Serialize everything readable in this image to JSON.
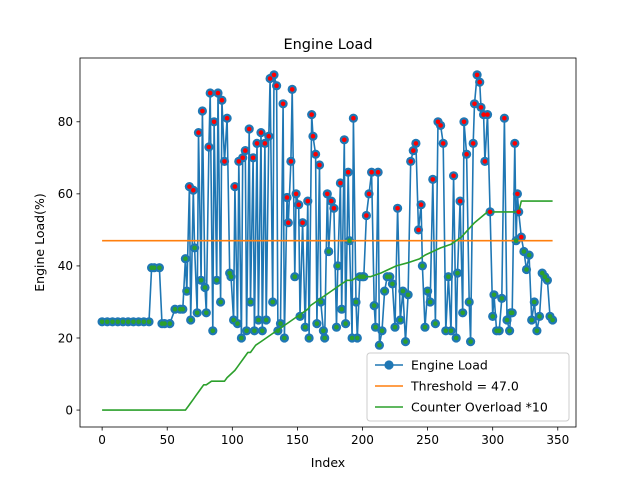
{
  "chart_data": {
    "type": "line",
    "title": "Engine Load",
    "xlabel": "Index",
    "ylabel": "Engine Load(%)",
    "xlim": [
      -17,
      364
    ],
    "ylim": [
      -4.7,
      97.7
    ],
    "xticks": [
      0,
      50,
      100,
      150,
      200,
      250,
      300,
      350
    ],
    "yticks": [
      0,
      20,
      40,
      60,
      80
    ],
    "grid": false,
    "legend_position": "lower right",
    "threshold": 47.0,
    "series": [
      {
        "name": "Engine Load",
        "color": "#1f77b4",
        "marker": "circle",
        "x": [
          0,
          4,
          8,
          12,
          16,
          20,
          24,
          28,
          32,
          36,
          38,
          40,
          44,
          46,
          48,
          52,
          56,
          60,
          62,
          64,
          65,
          67,
          68,
          70,
          71,
          73,
          74,
          76,
          77,
          79,
          80,
          82,
          83,
          85,
          86,
          88,
          89,
          91,
          92,
          94,
          96,
          98,
          99,
          101,
          102,
          104,
          105,
          107,
          108,
          110,
          111,
          113,
          114,
          116,
          117,
          119,
          120,
          122,
          123,
          125,
          126,
          128,
          129,
          131,
          132,
          134,
          135,
          137,
          139,
          140,
          142,
          143,
          145,
          146,
          148,
          149,
          151,
          152,
          154,
          156,
          158,
          159,
          161,
          162,
          164,
          165,
          167,
          168,
          170,
          171,
          173,
          174,
          176,
          178,
          180,
          181,
          183,
          184,
          186,
          187,
          189,
          190,
          192,
          193,
          195,
          196,
          198,
          200,
          201,
          203,
          205,
          207,
          209,
          210,
          212,
          213,
          215,
          217,
          219,
          221,
          223,
          225,
          227,
          229,
          231,
          233,
          235,
          237,
          239,
          241,
          243,
          245,
          246,
          248,
          250,
          252,
          254,
          256,
          258,
          260,
          262,
          264,
          266,
          268,
          270,
          272,
          273,
          275,
          277,
          278,
          280,
          282,
          283,
          285,
          286,
          288,
          290,
          291,
          293,
          294,
          296,
          298,
          300,
          301,
          303,
          305,
          307,
          309,
          311,
          313,
          314,
          315,
          317,
          318,
          319,
          320,
          322,
          324,
          326,
          328,
          330,
          332,
          334,
          336,
          338,
          340,
          342,
          344,
          346
        ],
        "y": [
          24.5,
          24.5,
          24.5,
          24.5,
          24.5,
          24.5,
          24.5,
          24.5,
          24.5,
          24.5,
          39.5,
          39.5,
          39.5,
          24,
          24,
          24,
          28,
          28,
          28,
          42,
          33,
          62,
          25,
          61,
          45,
          27,
          77,
          36,
          83,
          34,
          27,
          73,
          88,
          22,
          80,
          36,
          88,
          30,
          86,
          69,
          81,
          38,
          37,
          25,
          62,
          24,
          69,
          20,
          70,
          72,
          22,
          78,
          30,
          70,
          22,
          74,
          25,
          77,
          22,
          74,
          25,
          76,
          92,
          30,
          93,
          90,
          22,
          24,
          85,
          20,
          59,
          52,
          69,
          89,
          37,
          60,
          57,
          26,
          52,
          23,
          58,
          20,
          82,
          76,
          71,
          24,
          68,
          30,
          22,
          20,
          60,
          44,
          58,
          56,
          23,
          40,
          63,
          28,
          75,
          24,
          66,
          47,
          20,
          81,
          30,
          20,
          37,
          37,
          37,
          54,
          60,
          66,
          29,
          23,
          66,
          18,
          22,
          33,
          37,
          37,
          35,
          23,
          56,
          25,
          33,
          19,
          32,
          69,
          72,
          74,
          50,
          57,
          40,
          23,
          33,
          30,
          64,
          24,
          80,
          79,
          74,
          22,
          37,
          22,
          65,
          20,
          38,
          58,
          27,
          80,
          71,
          30,
          19,
          74,
          85,
          93,
          91,
          84,
          82,
          69,
          82,
          55,
          26,
          32,
          22,
          22,
          31,
          81,
          25,
          22,
          27,
          27,
          74,
          47,
          60,
          55,
          48,
          44,
          39,
          43,
          25,
          30,
          22,
          26,
          38,
          37,
          36,
          26,
          25
        ]
      },
      {
        "name": "Threshold = 47.0",
        "color": "#ff7f0e",
        "x": [
          0,
          346
        ],
        "y": [
          47.0,
          47.0
        ]
      },
      {
        "name": "Counter Overload *10",
        "color": "#2ca02c",
        "x": [
          0,
          64,
          66,
          68,
          70,
          72,
          74,
          76,
          78,
          80,
          84,
          86,
          94,
          96,
          99,
          102,
          104,
          106,
          108,
          110,
          112,
          114,
          116,
          118,
          122,
          126,
          130,
          134,
          138,
          142,
          146,
          150,
          154,
          158,
          160,
          164,
          168,
          172,
          176,
          180,
          184,
          188,
          192,
          196,
          200,
          206,
          214,
          220,
          226,
          236,
          244,
          248,
          254,
          260,
          268,
          272,
          276,
          286,
          296,
          320,
          322,
          346
        ],
        "y": [
          0,
          0,
          1,
          2,
          3,
          4,
          5,
          6,
          7,
          7,
          8,
          8,
          8,
          9,
          10,
          11,
          12,
          13,
          14,
          15,
          16,
          16,
          17,
          18,
          19,
          20,
          21,
          22,
          23,
          24,
          25,
          26,
          27,
          28,
          29,
          30,
          31,
          32,
          33,
          34,
          35,
          36,
          36,
          37,
          37,
          37,
          38,
          39,
          40,
          41,
          42,
          43,
          44,
          45,
          46,
          47,
          48,
          52,
          55,
          55,
          58,
          58
        ]
      }
    ],
    "overload_marker_color": "#ff0000",
    "normal_marker_color": "#2ca02c"
  }
}
